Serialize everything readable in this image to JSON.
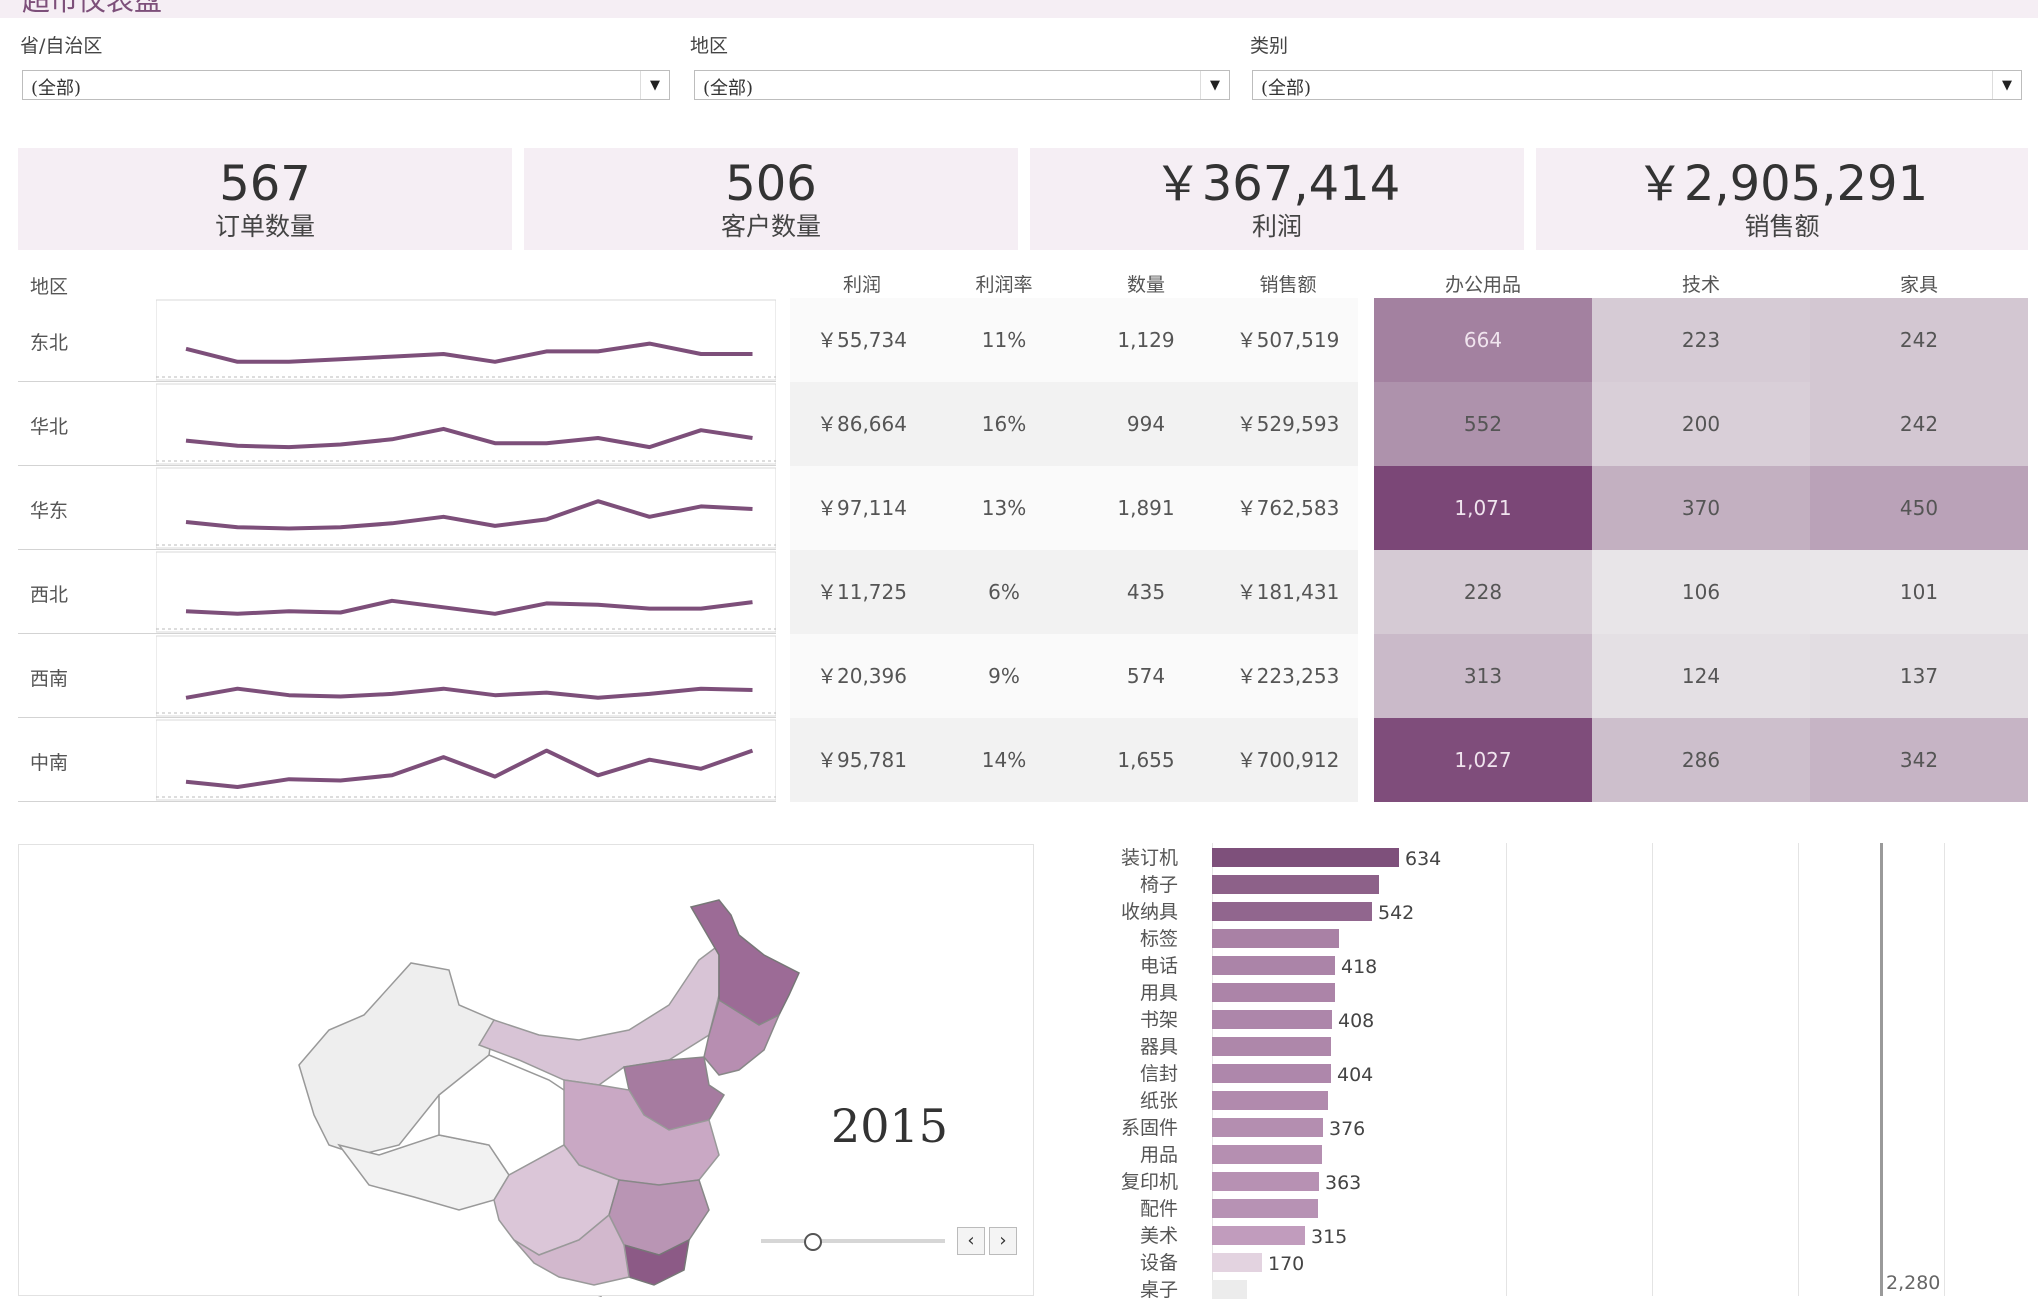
{
  "header": {
    "title": "超市仪表盘"
  },
  "filters": [
    {
      "label": "省/自治区",
      "value": "(全部)"
    },
    {
      "label": "地区",
      "value": "(全部)"
    },
    {
      "label": "类别",
      "value": "(全部)"
    }
  ],
  "kpis": [
    {
      "value": "567",
      "label": "订单数量"
    },
    {
      "value": "506",
      "label": "客户数量"
    },
    {
      "value": "￥367,414",
      "label": "利润"
    },
    {
      "value": "￥2,905,291",
      "label": "销售额"
    }
  ],
  "table": {
    "region_header": "地区",
    "columns": [
      "利润",
      "利润率",
      "数量",
      "销售额"
    ],
    "category_columns": [
      "办公用品",
      "技术",
      "家具"
    ],
    "rows": [
      {
        "region": "东北",
        "profit": "￥55,734",
        "margin": "11%",
        "qty": "1,129",
        "sales": "￥507,519",
        "office": "664",
        "tech": "223",
        "furniture": "242",
        "trend": [
          27,
          22,
          22,
          23,
          24,
          25,
          22,
          26,
          26,
          29,
          25,
          25
        ]
      },
      {
        "region": "华北",
        "profit": "￥86,664",
        "margin": "16%",
        "qty": "994",
        "sales": "￥529,593",
        "office": "552",
        "tech": "200",
        "furniture": "242",
        "trend": [
          24,
          22,
          21.5,
          22.5,
          24.5,
          28.5,
          23,
          23,
          25,
          21.5,
          28,
          25
        ]
      },
      {
        "region": "华东",
        "profit": "￥97,114",
        "margin": "13%",
        "qty": "1,891",
        "sales": "￥762,583",
        "office": "1,071",
        "tech": "370",
        "furniture": "450",
        "trend": [
          25,
          23,
          22.5,
          23,
          24.5,
          27,
          23.5,
          26,
          33,
          27,
          31,
          30
        ]
      },
      {
        "region": "西北",
        "profit": "￥11,725",
        "margin": "6%",
        "qty": "435",
        "sales": "￥181,431",
        "office": "228",
        "tech": "106",
        "furniture": "101",
        "trend": [
          23,
          22,
          23,
          22.5,
          27,
          24.5,
          22,
          26,
          25.5,
          24,
          24,
          26.5
        ]
      },
      {
        "region": "西南",
        "profit": "￥20,396",
        "margin": "9%",
        "qty": "574",
        "sales": "￥223,253",
        "office": "313",
        "tech": "124",
        "furniture": "137",
        "trend": [
          22,
          25.5,
          23,
          22.5,
          23.5,
          25.5,
          23,
          24,
          22,
          23.5,
          25.5,
          25
        ]
      },
      {
        "region": "中南",
        "profit": "￥95,781",
        "margin": "14%",
        "qty": "1,655",
        "sales": "￥700,912",
        "office": "1,027",
        "tech": "286",
        "furniture": "342",
        "trend": [
          22,
          20,
          23,
          22.5,
          24.5,
          31.5,
          24,
          34,
          24.5,
          30.5,
          27,
          34
        ]
      }
    ]
  },
  "map": {
    "year_label": "2015"
  },
  "chart_data": {
    "type": "bar",
    "categories": [
      "装订机",
      "椅子",
      "收纳具",
      "标签",
      "电话",
      "用具",
      "书架",
      "器具",
      "信封",
      "纸张",
      "系固件",
      "用品",
      "复印机",
      "配件",
      "美术",
      "设备",
      "桌子"
    ],
    "values": [
      634,
      565,
      542,
      430,
      418,
      416,
      408,
      405,
      404,
      392,
      376,
      372,
      363,
      360,
      315,
      170,
      120
    ],
    "data_labels": [
      "634",
      "",
      "542",
      "",
      "418",
      "",
      "408",
      "",
      "404",
      "",
      "376",
      "",
      "363",
      "",
      "315",
      "170",
      ""
    ],
    "reference_label": "2,280"
  },
  "colors": {
    "accent": "#7d4f7a",
    "kpi_bg": "#f5eef4"
  }
}
